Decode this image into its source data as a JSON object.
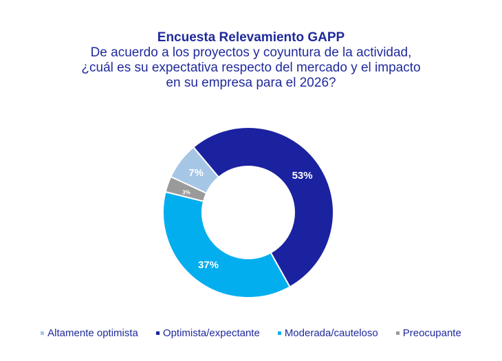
{
  "chart_data": {
    "type": "pie",
    "variant": "donut",
    "title": "Encuesta Relevamiento GAPP",
    "subtitle": [
      "De acuerdo a los proyectos y coyuntura de la actividad,",
      "¿cuál es su expectativa respecto del mercado y el impacto",
      "en su empresa para el 2026?"
    ],
    "categories": [
      "Altamente optimista",
      "Optimista/expectante",
      "Moderada/cauteloso",
      "Preocupante"
    ],
    "values": [
      7,
      53,
      37,
      3
    ],
    "labels": [
      "7%",
      "53%",
      "37%",
      "3%"
    ],
    "colors": [
      "#a6c6e6",
      "#1b22a0",
      "#02aeee",
      "#9a9a9a"
    ],
    "legend_position": "bottom"
  }
}
